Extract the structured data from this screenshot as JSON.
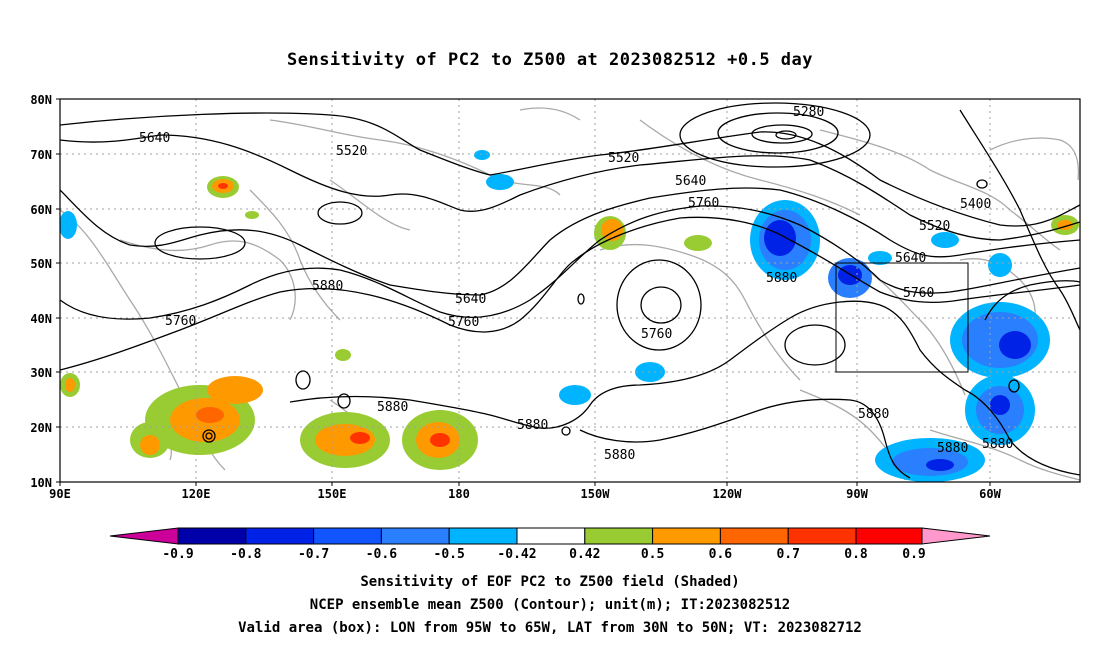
{
  "title": "Sensitivity of PC2 to Z500 at 2023082512 +0.5 day",
  "axes": {
    "lat_labels": [
      "80N",
      "70N",
      "60N",
      "50N",
      "40N",
      "30N",
      "20N",
      "10N"
    ],
    "lon_labels": [
      "90E",
      "120E",
      "150E",
      "180",
      "150W",
      "120W",
      "90W",
      "60W"
    ]
  },
  "contour_labels": [
    "5640",
    "5520",
    "5280",
    "5520",
    "5640",
    "5760",
    "5400",
    "5520",
    "5640",
    "5760",
    "5880",
    "5880",
    "5760",
    "5640",
    "5760",
    "5760",
    "5880",
    "5880",
    "5880",
    "5880",
    "5880",
    "5880"
  ],
  "colorbar": {
    "tick_labels": [
      "-0.9",
      "-0.8",
      "-0.7",
      "-0.6",
      "-0.5",
      "-0.42",
      "0.42",
      "0.5",
      "0.6",
      "0.7",
      "0.8",
      "0.9"
    ],
    "colors": [
      "#cc0099",
      "#0000aa",
      "#0022e6",
      "#1155ff",
      "#2a7fff",
      "#00b4ff",
      "#ffffff",
      "#99cc33",
      "#ff9900",
      "#ff6600",
      "#ff3300",
      "#ff0000",
      "#ff99cc"
    ]
  },
  "box": {
    "lon_from": "95W",
    "lon_to": "65W",
    "lat_from": "30N",
    "lat_to": "50N"
  },
  "captions": [
    "Sensitivity of EOF PC2 to Z500 field (Shaded)",
    "NCEP ensemble mean Z500 (Contour); unit(m); IT:2023082512",
    "Valid area (box): LON from 95W to 65W, LAT from 30N to 50N; VT: 2023082712"
  ]
}
